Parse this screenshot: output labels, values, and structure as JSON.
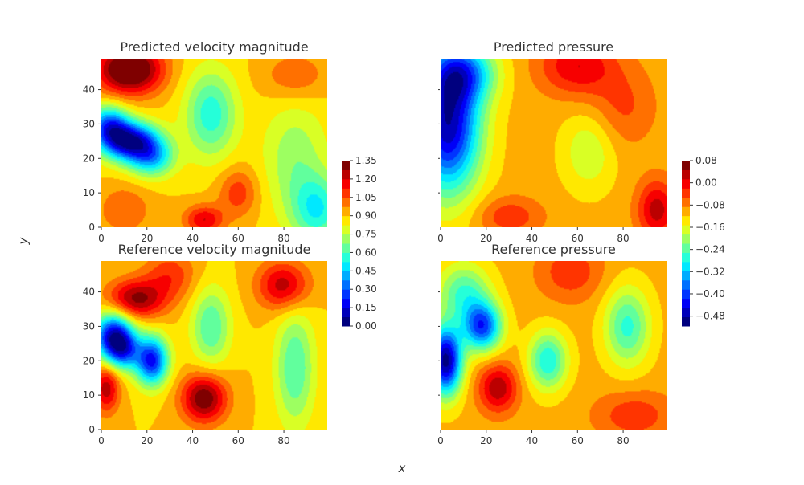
{
  "figure": {
    "xlabel": "x",
    "ylabel": "y"
  },
  "colormap": [
    "#00007f",
    "#0000ff",
    "#007fff",
    "#00ffff",
    "#7fff7f",
    "#ffff00",
    "#ff7f00",
    "#ff0000",
    "#7f0000"
  ],
  "chart_data": [
    {
      "type": "heatmap",
      "title": "Predicted velocity magnitude",
      "xlim": [
        0,
        99
      ],
      "ylim": [
        0,
        49
      ],
      "xticks": [
        "0",
        "20",
        "40",
        "60",
        "80"
      ],
      "yticks": [
        "0",
        "10",
        "20",
        "30",
        "40"
      ],
      "grid": false,
      "colorbar": {
        "min": 0.0,
        "max": 1.35,
        "ticks": [
          "0.00",
          "0.15",
          "0.30",
          "0.45",
          "0.60",
          "0.75",
          "0.90",
          "1.05",
          "1.20",
          "1.35"
        ]
      },
      "features": [
        {
          "x": 15,
          "y": 46,
          "amp": 0.45,
          "sx": 9,
          "sy": 5
        },
        {
          "x": 5,
          "y": 46,
          "amp": 0.2,
          "sx": 8,
          "sy": 5
        },
        {
          "x": 12,
          "y": 25,
          "amp": -0.8,
          "sx": 9,
          "sy": 4
        },
        {
          "x": 22,
          "y": 20,
          "amp": -0.4,
          "sx": 7,
          "sy": 4
        },
        {
          "x": 3,
          "y": 30,
          "amp": -0.5,
          "sx": 6,
          "sy": 4
        },
        {
          "x": 48,
          "y": 33,
          "amp": -0.35,
          "sx": 8,
          "sy": 9
        },
        {
          "x": 95,
          "y": 5,
          "amp": -0.35,
          "sx": 8,
          "sy": 7
        },
        {
          "x": 85,
          "y": 20,
          "amp": -0.2,
          "sx": 10,
          "sy": 12
        },
        {
          "x": 45,
          "y": 2,
          "amp": 0.3,
          "sx": 6,
          "sy": 3
        },
        {
          "x": 10,
          "y": 5,
          "amp": 0.15,
          "sx": 8,
          "sy": 5
        },
        {
          "x": 85,
          "y": 44,
          "amp": 0.15,
          "sx": 10,
          "sy": 5
        },
        {
          "x": 60,
          "y": 10,
          "amp": 0.2,
          "sx": 6,
          "sy": 5
        }
      ]
    },
    {
      "type": "heatmap",
      "title": "Predicted pressure",
      "xlim": [
        0,
        99
      ],
      "ylim": [
        0,
        49
      ],
      "xticks": [
        "0",
        "20",
        "40",
        "60",
        "80"
      ],
      "yticks": [],
      "grid": false,
      "colorbar": {
        "min": -0.52,
        "max": 0.09,
        "ticks": [
          "0.08",
          "0.00",
          "−0.08",
          "−0.16",
          "−0.24",
          "−0.32",
          "−0.40",
          "−0.48"
        ]
      },
      "features": [
        {
          "x": 3,
          "y": 30,
          "amp": -0.38,
          "sx": 10,
          "sy": 14
        },
        {
          "x": 10,
          "y": 45,
          "amp": -0.2,
          "sx": 10,
          "sy": 6
        },
        {
          "x": 60,
          "y": 47,
          "amp": 0.12,
          "sx": 12,
          "sy": 6
        },
        {
          "x": 95,
          "y": 5,
          "amp": 0.14,
          "sx": 6,
          "sy": 6
        },
        {
          "x": 30,
          "y": 3,
          "amp": 0.08,
          "sx": 10,
          "sy": 4
        },
        {
          "x": 65,
          "y": 22,
          "amp": -0.08,
          "sx": 8,
          "sy": 8
        },
        {
          "x": 80,
          "y": 35,
          "amp": 0.06,
          "sx": 10,
          "sy": 8
        }
      ]
    },
    {
      "type": "heatmap",
      "title": "Reference velocity magnitude",
      "xlim": [
        0,
        99
      ],
      "ylim": [
        0,
        49
      ],
      "xticks": [
        "0",
        "20",
        "40",
        "60",
        "80"
      ],
      "yticks": [
        "0",
        "10",
        "20",
        "30",
        "40"
      ],
      "grid": false,
      "colorbar": null,
      "features": [
        {
          "x": 15,
          "y": 38,
          "amp": 0.4,
          "sx": 9,
          "sy": 4
        },
        {
          "x": 5,
          "y": 27,
          "amp": -0.75,
          "sx": 6,
          "sy": 5
        },
        {
          "x": 22,
          "y": 20,
          "amp": -0.7,
          "sx": 5,
          "sy": 5
        },
        {
          "x": 10,
          "y": 23,
          "amp": -0.4,
          "sx": 5,
          "sy": 4
        },
        {
          "x": 45,
          "y": 9,
          "amp": 0.45,
          "sx": 7,
          "sy": 5
        },
        {
          "x": 80,
          "y": 42,
          "amp": 0.35,
          "sx": 8,
          "sy": 5
        },
        {
          "x": 85,
          "y": 18,
          "amp": -0.3,
          "sx": 6,
          "sy": 12
        },
        {
          "x": 48,
          "y": 30,
          "amp": -0.3,
          "sx": 6,
          "sy": 8
        },
        {
          "x": 2,
          "y": 12,
          "amp": 0.35,
          "sx": 4,
          "sy": 5
        },
        {
          "x": 30,
          "y": 45,
          "amp": 0.2,
          "sx": 8,
          "sy": 5
        }
      ]
    },
    {
      "type": "heatmap",
      "title": "Reference pressure",
      "xlim": [
        0,
        99
      ],
      "ylim": [
        0,
        49
      ],
      "xticks": [
        "0",
        "20",
        "40",
        "60",
        "80"
      ],
      "yticks": [],
      "grid": false,
      "colorbar": null,
      "features": [
        {
          "x": 2,
          "y": 20,
          "amp": -0.4,
          "sx": 5,
          "sy": 7
        },
        {
          "x": 18,
          "y": 30,
          "amp": -0.3,
          "sx": 6,
          "sy": 5
        },
        {
          "x": 10,
          "y": 40,
          "amp": -0.15,
          "sx": 8,
          "sy": 6
        },
        {
          "x": 25,
          "y": 12,
          "amp": 0.15,
          "sx": 6,
          "sy": 5
        },
        {
          "x": 47,
          "y": 20,
          "amp": -0.18,
          "sx": 6,
          "sy": 6
        },
        {
          "x": 82,
          "y": 30,
          "amp": -0.16,
          "sx": 7,
          "sy": 8
        },
        {
          "x": 57,
          "y": 46,
          "amp": 0.08,
          "sx": 10,
          "sy": 6
        },
        {
          "x": 85,
          "y": 4,
          "amp": 0.08,
          "sx": 12,
          "sy": 5
        }
      ]
    }
  ]
}
